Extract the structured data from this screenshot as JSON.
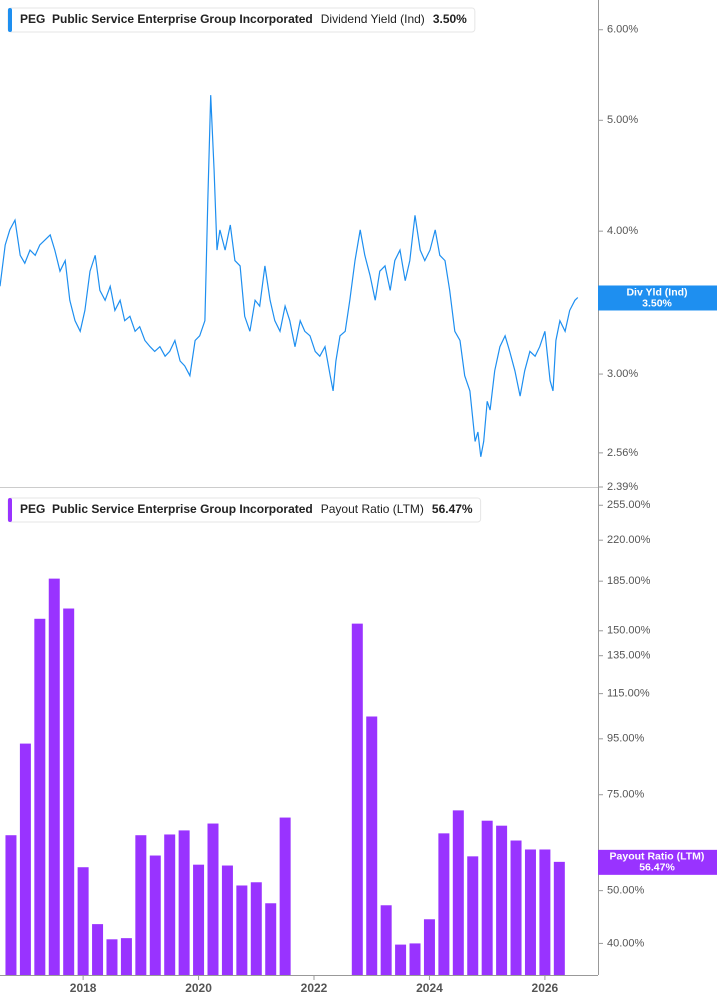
{
  "chart_data": [
    {
      "type": "line",
      "ticker": "PEG",
      "company": "Public Service Enterprise Group Incorporated",
      "metric": "Dividend Yield (Ind)",
      "current_label": "3.50%",
      "tag_name": "Div Yld (Ind)",
      "color": "#1e8ff0",
      "log": true,
      "xlim": [
        2016.56,
        2026.92
      ],
      "ylim": [
        2.39,
        6.37
      ],
      "yticks": [
        {
          "value": 6,
          "label": "6.00%"
        },
        {
          "value": 5,
          "label": "5.00%"
        },
        {
          "value": 4,
          "label": "4.00%"
        },
        {
          "value": 3,
          "label": "3.00%"
        },
        {
          "value": 2.56,
          "label": "2.56%"
        },
        {
          "value": 2.39,
          "label": "2.39%"
        }
      ],
      "x": [
        2016.56,
        2016.65,
        2016.73,
        2016.82,
        2016.91,
        2016.99,
        2017.08,
        2017.17,
        2017.25,
        2017.34,
        2017.43,
        2017.51,
        2017.6,
        2017.69,
        2017.77,
        2017.86,
        2017.95,
        2018.03,
        2018.12,
        2018.21,
        2018.29,
        2018.38,
        2018.47,
        2018.55,
        2018.64,
        2018.72,
        2018.81,
        2018.9,
        2018.98,
        2019.07,
        2019.16,
        2019.24,
        2019.33,
        2019.42,
        2019.5,
        2019.59,
        2019.68,
        2019.76,
        2019.85,
        2019.94,
        2020.02,
        2020.11,
        2020.16,
        2020.21,
        2020.27,
        2020.32,
        2020.37,
        2020.46,
        2020.55,
        2020.63,
        2020.72,
        2020.8,
        2020.89,
        2020.98,
        2021.06,
        2021.15,
        2021.24,
        2021.32,
        2021.41,
        2021.5,
        2021.58,
        2021.67,
        2021.76,
        2021.84,
        2021.93,
        2022.02,
        2022.1,
        2022.19,
        2022.28,
        2022.33,
        2022.38,
        2022.45,
        2022.54,
        2022.62,
        2022.71,
        2022.8,
        2022.88,
        2022.97,
        2023.06,
        2023.14,
        2023.23,
        2023.32,
        2023.4,
        2023.49,
        2023.58,
        2023.66,
        2023.75,
        2023.84,
        2023.92,
        2024.01,
        2024.1,
        2024.18,
        2024.27,
        2024.35,
        2024.44,
        2024.53,
        2024.61,
        2024.7,
        2024.79,
        2024.84,
        2024.89,
        2024.94,
        2025.0,
        2025.05,
        2025.13,
        2025.22,
        2025.31,
        2025.39,
        2025.48,
        2025.57,
        2025.65,
        2025.74,
        2025.83,
        2025.91,
        2026.0,
        2026.09,
        2026.14,
        2026.19,
        2026.26,
        2026.35,
        2026.43,
        2026.52,
        2026.57
      ],
      "values": [
        3.58,
        3.89,
        4.01,
        4.09,
        3.81,
        3.75,
        3.85,
        3.81,
        3.89,
        3.93,
        3.97,
        3.85,
        3.69,
        3.77,
        3.48,
        3.34,
        3.27,
        3.41,
        3.69,
        3.81,
        3.55,
        3.48,
        3.58,
        3.41,
        3.48,
        3.34,
        3.37,
        3.27,
        3.3,
        3.21,
        3.17,
        3.14,
        3.17,
        3.11,
        3.14,
        3.21,
        3.08,
        3.05,
        2.99,
        3.21,
        3.24,
        3.34,
        4.25,
        5.26,
        4.52,
        3.85,
        4.01,
        3.85,
        4.05,
        3.77,
        3.73,
        3.37,
        3.27,
        3.48,
        3.44,
        3.73,
        3.48,
        3.34,
        3.27,
        3.44,
        3.34,
        3.17,
        3.34,
        3.27,
        3.24,
        3.14,
        3.11,
        3.17,
        2.99,
        2.9,
        3.08,
        3.24,
        3.27,
        3.48,
        3.77,
        4.01,
        3.81,
        3.66,
        3.48,
        3.69,
        3.73,
        3.55,
        3.77,
        3.85,
        3.62,
        3.77,
        4.13,
        3.85,
        3.77,
        3.85,
        4.01,
        3.81,
        3.77,
        3.55,
        3.27,
        3.21,
        2.99,
        2.9,
        2.62,
        2.67,
        2.54,
        2.62,
        2.84,
        2.79,
        3.02,
        3.17,
        3.24,
        3.14,
        3.02,
        2.87,
        3.02,
        3.14,
        3.11,
        3.17,
        3.27,
        2.96,
        2.9,
        3.21,
        3.34,
        3.27,
        3.41,
        3.48,
        3.5
      ]
    },
    {
      "type": "bar",
      "ticker": "PEG",
      "company": "Public Service Enterprise Group Incorporated",
      "metric": "Payout Ratio (LTM)",
      "current_label": "56.47%",
      "tag_name": "Payout Ratio (LTM)",
      "color": "#9933ff",
      "log": true,
      "xlim": [
        2016.56,
        2026.92
      ],
      "xticks": [
        2018,
        2020,
        2022,
        2024,
        2026
      ],
      "ylim": [
        35,
        272
      ],
      "yticks": [
        {
          "value": 255,
          "label": "255.00%"
        },
        {
          "value": 220,
          "label": "220.00%"
        },
        {
          "value": 185,
          "label": "185.00%"
        },
        {
          "value": 150,
          "label": "150.00%"
        },
        {
          "value": 135,
          "label": "135.00%"
        },
        {
          "value": 115,
          "label": "115.00%"
        },
        {
          "value": 95,
          "label": "95.00%"
        },
        {
          "value": 75,
          "label": "75.00%"
        },
        {
          "value": 50,
          "label": "50.00%"
        },
        {
          "value": 40,
          "label": "40.00%"
        }
      ],
      "x": [
        2016.75,
        2017,
        2017.25,
        2017.5,
        2017.75,
        2018,
        2018.25,
        2018.5,
        2018.75,
        2019,
        2019.25,
        2019.5,
        2019.75,
        2020,
        2020.25,
        2020.5,
        2020.75,
        2021,
        2021.25,
        2021.5,
        2022.75,
        2023,
        2023.25,
        2023.5,
        2023.75,
        2024,
        2024.25,
        2024.5,
        2024.75,
        2025,
        2025.25,
        2025.5,
        2025.75,
        2026,
        2026.25
      ],
      "values": [
        63.2,
        93.1,
        157.8,
        187,
        164.8,
        55.2,
        43.4,
        40.7,
        40.9,
        63.2,
        58.0,
        63.4,
        64.5,
        55.8,
        66.4,
        55.6,
        51.1,
        51.8,
        47.4,
        68.1,
        154.6,
        104.4,
        47.0,
        39.8,
        40,
        44.3,
        63.7,
        70.2,
        57.8,
        67.2,
        65.8,
        61.8,
        59.5,
        59.5,
        56.47
      ]
    }
  ]
}
